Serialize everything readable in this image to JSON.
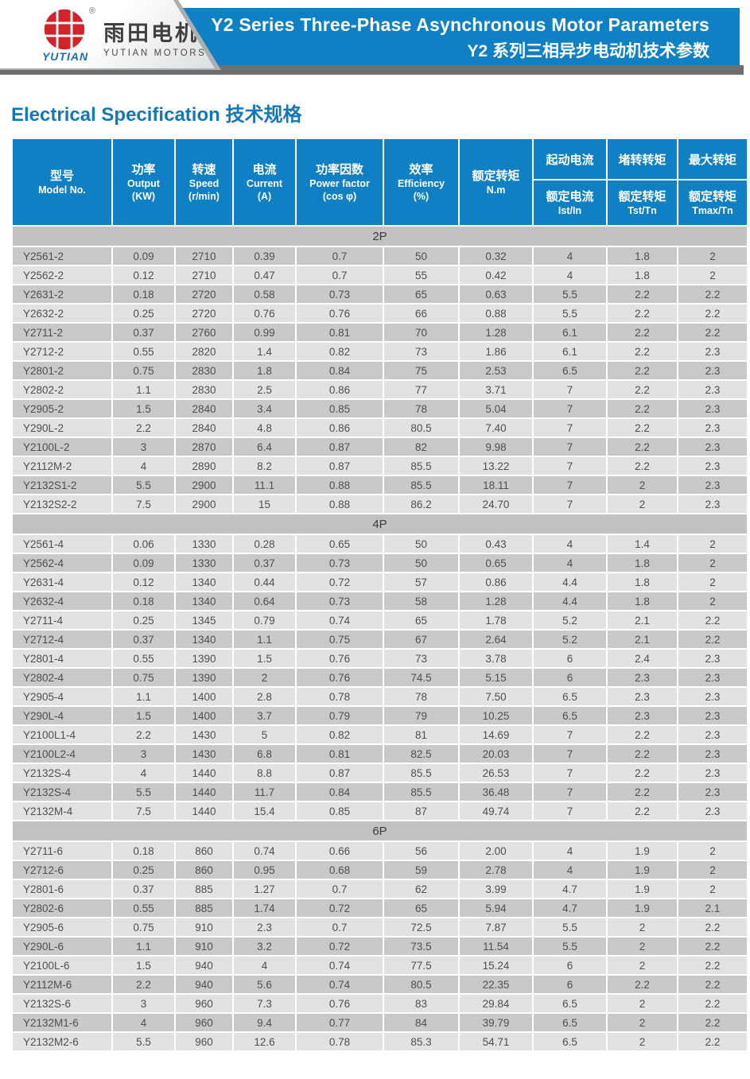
{
  "header": {
    "logo": {
      "brand_cn": "雨田电机",
      "brand_en": "YUTIAN MOTORS",
      "brand_script": "YUTIAN",
      "reg_mark": "®"
    },
    "banner": {
      "title_en": "Y2 Series Three-Phase Asynchronous Motor Parameters",
      "title_cn": "Y2 系列三相异步电动机技术参数"
    }
  },
  "section_title": {
    "en": "Electrical Specification",
    "cn": "技术规格"
  },
  "table": {
    "columns": [
      {
        "cn": "型号",
        "en": "Model No.",
        "unit": ""
      },
      {
        "cn": "功率",
        "en": "Output",
        "unit": "(KW)"
      },
      {
        "cn": "转速",
        "en": "Speed",
        "unit": "(r/min)"
      },
      {
        "cn": "电流",
        "en": "Current",
        "unit": "(A)"
      },
      {
        "cn": "功率因数",
        "en": "Power factor",
        "unit": "(cos φ)"
      },
      {
        "cn": "效率",
        "en": "Efficiency",
        "unit": "(%)"
      },
      {
        "cn": "额定转矩",
        "en": "N.m",
        "unit": ""
      }
    ],
    "ratio_columns": [
      {
        "top": "起动电流",
        "bottom": "额定电流",
        "sub": "Ist/In"
      },
      {
        "top": "堵转转矩",
        "bottom": "额定转矩",
        "sub": "Tst/Tn"
      },
      {
        "top": "最大转矩",
        "bottom": "额定转矩",
        "sub": "Tmax/Tn"
      }
    ],
    "sections": [
      {
        "label": "2P",
        "rows": [
          [
            "Y2561-2",
            "0.09",
            "2710",
            "0.39",
            "0.7",
            "50",
            "0.32",
            "4",
            "1.8",
            "2"
          ],
          [
            "Y2562-2",
            "0.12",
            "2710",
            "0.47",
            "0.7",
            "55",
            "0.42",
            "4",
            "1.8",
            "2"
          ],
          [
            "Y2631-2",
            "0.18",
            "2720",
            "0.58",
            "0.73",
            "65",
            "0.63",
            "5.5",
            "2.2",
            "2.2"
          ],
          [
            "Y2632-2",
            "0.25",
            "2720",
            "0.76",
            "0.76",
            "66",
            "0.88",
            "5.5",
            "2.2",
            "2.2"
          ],
          [
            "Y2711-2",
            "0.37",
            "2760",
            "0.99",
            "0.81",
            "70",
            "1.28",
            "6.1",
            "2.2",
            "2.2"
          ],
          [
            "Y2712-2",
            "0.55",
            "2820",
            "1.4",
            "0.82",
            "73",
            "1.86",
            "6.1",
            "2.2",
            "2.3"
          ],
          [
            "Y2801-2",
            "0.75",
            "2830",
            "1.8",
            "0.84",
            "75",
            "2.53",
            "6.5",
            "2.2",
            "2.3"
          ],
          [
            "Y2802-2",
            "1.1",
            "2830",
            "2.5",
            "0.86",
            "77",
            "3.71",
            "7",
            "2.2",
            "2.3"
          ],
          [
            "Y2905-2",
            "1.5",
            "2840",
            "3.4",
            "0.85",
            "78",
            "5.04",
            "7",
            "2.2",
            "2.3"
          ],
          [
            "Y290L-2",
            "2.2",
            "2840",
            "4.8",
            "0.86",
            "80.5",
            "7.40",
            "7",
            "2.2",
            "2.3"
          ],
          [
            "Y2100L-2",
            "3",
            "2870",
            "6.4",
            "0.87",
            "82",
            "9.98",
            "7",
            "2.2",
            "2.3"
          ],
          [
            "Y2112M-2",
            "4",
            "2890",
            "8.2",
            "0.87",
            "85.5",
            "13.22",
            "7",
            "2.2",
            "2.3"
          ],
          [
            "Y2132S1-2",
            "5.5",
            "2900",
            "11.1",
            "0.88",
            "85.5",
            "18.11",
            "7",
            "2",
            "2.3"
          ],
          [
            "Y2132S2-2",
            "7.5",
            "2900",
            "15",
            "0.88",
            "86.2",
            "24.70",
            "7",
            "2",
            "2.3"
          ]
        ]
      },
      {
        "label": "4P",
        "rows": [
          [
            "Y2561-4",
            "0.06",
            "1330",
            "0.28",
            "0.65",
            "50",
            "0.43",
            "4",
            "1.4",
            "2"
          ],
          [
            "Y2562-4",
            "0.09",
            "1330",
            "0.37",
            "0.73",
            "50",
            "0.65",
            "4",
            "1.8",
            "2"
          ],
          [
            "Y2631-4",
            "0.12",
            "1340",
            "0.44",
            "0.72",
            "57",
            "0.86",
            "4.4",
            "1.8",
            "2"
          ],
          [
            "Y2632-4",
            "0.18",
            "1340",
            "0.64",
            "0.73",
            "58",
            "1.28",
            "4.4",
            "1.8",
            "2"
          ],
          [
            "Y2711-4",
            "0.25",
            "1345",
            "0.79",
            "0.74",
            "65",
            "1.78",
            "5.2",
            "2.1",
            "2.2"
          ],
          [
            "Y2712-4",
            "0.37",
            "1340",
            "1.1",
            "0.75",
            "67",
            "2.64",
            "5.2",
            "2.1",
            "2.2"
          ],
          [
            "Y2801-4",
            "0.55",
            "1390",
            "1.5",
            "0.76",
            "73",
            "3.78",
            "6",
            "2.4",
            "2.3"
          ],
          [
            "Y2802-4",
            "0.75",
            "1390",
            "2",
            "0.76",
            "74.5",
            "5.15",
            "6",
            "2.3",
            "2.3"
          ],
          [
            "Y2905-4",
            "1.1",
            "1400",
            "2.8",
            "0.78",
            "78",
            "7.50",
            "6.5",
            "2.3",
            "2.3"
          ],
          [
            "Y290L-4",
            "1.5",
            "1400",
            "3.7",
            "0.79",
            "79",
            "10.25",
            "6.5",
            "2.3",
            "2.3"
          ],
          [
            "Y2100L1-4",
            "2.2",
            "1430",
            "5",
            "0.82",
            "81",
            "14.69",
            "7",
            "2.2",
            "2.3"
          ],
          [
            "Y2100L2-4",
            "3",
            "1430",
            "6.8",
            "0.81",
            "82.5",
            "20.03",
            "7",
            "2.2",
            "2.3"
          ],
          [
            "Y2132S-4",
            "4",
            "1440",
            "8.8",
            "0.87",
            "85.5",
            "26.53",
            "7",
            "2.2",
            "2.3"
          ],
          [
            "Y2132S-4",
            "5.5",
            "1440",
            "11.7",
            "0.84",
            "85.5",
            "36.48",
            "7",
            "2.2",
            "2.3"
          ],
          [
            "Y2132M-4",
            "7.5",
            "1440",
            "15.4",
            "0.85",
            "87",
            "49.74",
            "7",
            "2.2",
            "2.3"
          ]
        ]
      },
      {
        "label": "6P",
        "rows": [
          [
            "Y2711-6",
            "0.18",
            "860",
            "0.74",
            "0.66",
            "56",
            "2.00",
            "4",
            "1.9",
            "2"
          ],
          [
            "Y2712-6",
            "0.25",
            "860",
            "0.95",
            "0.68",
            "59",
            "2.78",
            "4",
            "1.9",
            "2"
          ],
          [
            "Y2801-6",
            "0.37",
            "885",
            "1.27",
            "0.7",
            "62",
            "3.99",
            "4.7",
            "1.9",
            "2"
          ],
          [
            "Y2802-6",
            "0.55",
            "885",
            "1.74",
            "0.72",
            "65",
            "5.94",
            "4.7",
            "1.9",
            "2.1"
          ],
          [
            "Y2905-6",
            "0.75",
            "910",
            "2.3",
            "0.7",
            "72.5",
            "7.87",
            "5.5",
            "2",
            "2.2"
          ],
          [
            "Y290L-6",
            "1.1",
            "910",
            "3.2",
            "0.72",
            "73.5",
            "11.54",
            "5.5",
            "2",
            "2.2"
          ],
          [
            "Y2100L-6",
            "1.5",
            "940",
            "4",
            "0.74",
            "77.5",
            "15.24",
            "6",
            "2",
            "2.2"
          ],
          [
            "Y2112M-6",
            "2.2",
            "940",
            "5.6",
            "0.74",
            "80.5",
            "22.35",
            "6",
            "2.2",
            "2.2"
          ],
          [
            "Y2132S-6",
            "3",
            "960",
            "7.3",
            "0.76",
            "83",
            "29.84",
            "6.5",
            "2",
            "2.2"
          ],
          [
            "Y2132M1-6",
            "4",
            "960",
            "9.4",
            "0.77",
            "84",
            "39.79",
            "6.5",
            "2",
            "2.2"
          ],
          [
            "Y2132M2-6",
            "5.5",
            "960",
            "12.6",
            "0.78",
            "85.3",
            "54.71",
            "6.5",
            "2",
            "2.2"
          ]
        ]
      }
    ]
  },
  "colors": {
    "accent-blue": "#0e80c3",
    "title-blue": "#1677b6",
    "logo-red": "#d2232a",
    "bar-gray": "#6f6f6f",
    "band-gray": "#c2c2c2",
    "row-dark": "#c9c9c9",
    "row-light": "#e2e2e2",
    "cell-text": "#4f4f4f"
  }
}
